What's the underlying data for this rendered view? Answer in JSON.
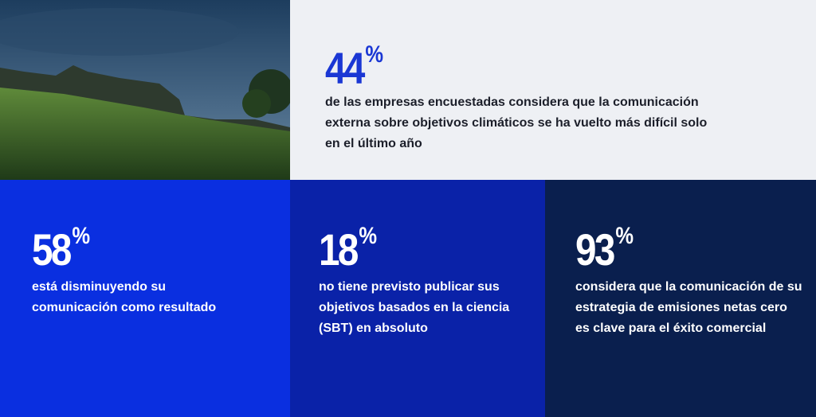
{
  "stats": [
    {
      "number": "44",
      "unit": "%",
      "text": "de las empresas encuestadas considera que la comunicación externa sobre objetivos climáticos se ha vuelto más difícil solo en el último año"
    },
    {
      "number": "58",
      "unit": "%",
      "text": "está disminuyendo su comunicación como resultado"
    },
    {
      "number": "18",
      "unit": "%",
      "text": "no tiene previsto publicar sus objetivos basados en la ciencia (SBT) en absoluto"
    },
    {
      "number": "93",
      "unit": "%",
      "text": "considera que la comunicación de su estrategia de emisiones netas cero es clave para el éxito comercial"
    }
  ]
}
